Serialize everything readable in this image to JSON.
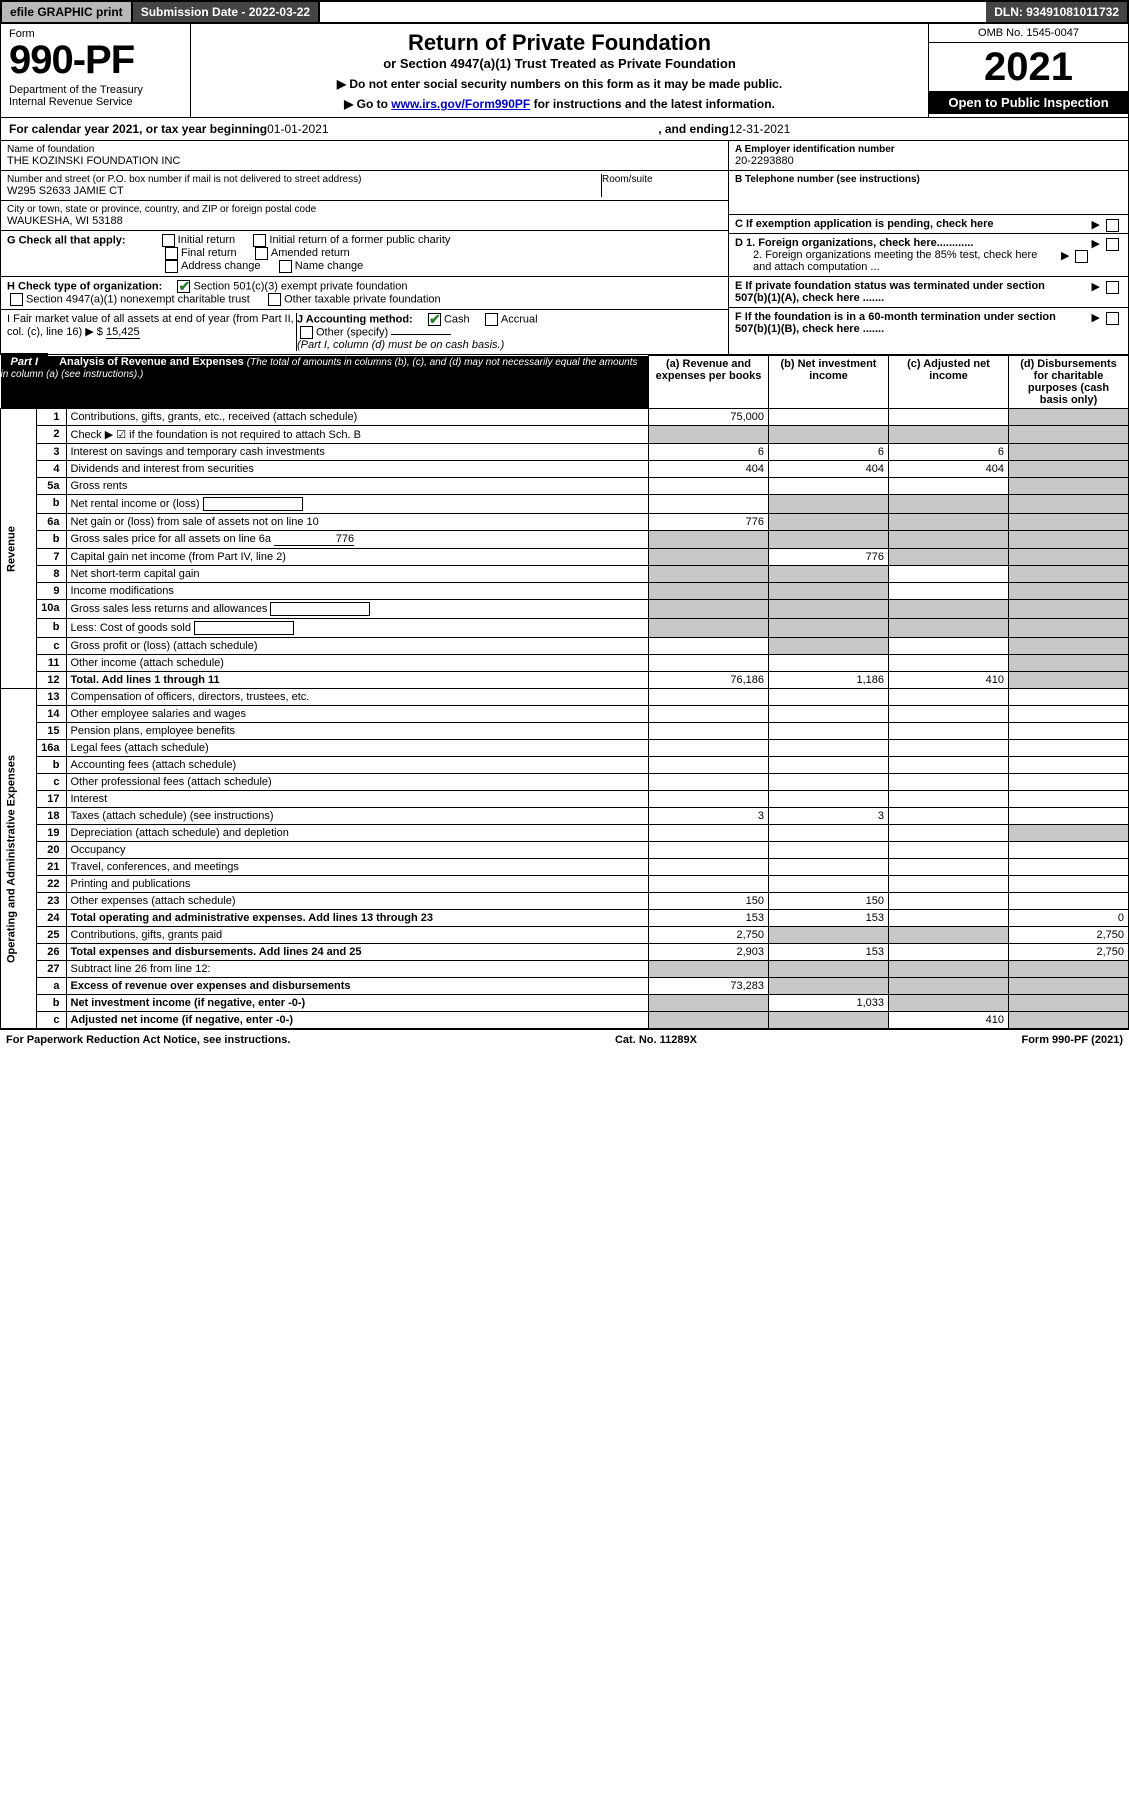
{
  "topbar": {
    "efile": "efile GRAPHIC print",
    "subdate_label": "Submission Date - ",
    "subdate": "2022-03-22",
    "dln_label": "DLN: ",
    "dln": "93491081011732"
  },
  "header": {
    "form_label": "Form",
    "form_no": "990-PF",
    "dept": "Department of the Treasury\nInternal Revenue Service",
    "title": "Return of Private Foundation",
    "subtitle": "or Section 4947(a)(1) Trust Treated as Private Foundation",
    "instr1": "▶ Do not enter social security numbers on this form as it may be made public.",
    "instr2_pre": "▶ Go to ",
    "instr2_link": "www.irs.gov/Form990PF",
    "instr2_post": " for instructions and the latest information.",
    "omb": "OMB No. 1545-0047",
    "year": "2021",
    "open": "Open to Public Inspection"
  },
  "cal": {
    "pre": "For calendar year 2021, or tax year beginning ",
    "begin": "01-01-2021",
    "mid": " , and ending ",
    "end": "12-31-2021"
  },
  "entity": {
    "name_label": "Name of foundation",
    "name": "THE KOZINSKI FOUNDATION INC",
    "addr_label": "Number and street (or P.O. box number if mail is not delivered to street address)",
    "addr": "W295 S2633 JAMIE CT",
    "room_label": "Room/suite",
    "room": "",
    "city_label": "City or town, state or province, country, and ZIP or foreign postal code",
    "city": "WAUKESHA, WI  53188",
    "ein_label": "A Employer identification number",
    "ein": "20-2293880",
    "phone_label": "B Telephone number (see instructions)",
    "phone": "",
    "c_label": "C If exemption application is pending, check here",
    "d1": "D 1. Foreign organizations, check here............",
    "d2": "2. Foreign organizations meeting the 85% test, check here and attach computation ...",
    "e": "E  If private foundation status was terminated under section 507(b)(1)(A), check here .......",
    "f": "F  If the foundation is in a 60-month termination under section 507(b)(1)(B), check here .......",
    "g_label": "G Check all that apply:",
    "g_opts": [
      "Initial return",
      "Initial return of a former public charity",
      "Final return",
      "Amended return",
      "Address change",
      "Name change"
    ],
    "h_label": "H Check type of organization:",
    "h_opts": [
      "Section 501(c)(3) exempt private foundation",
      "Section 4947(a)(1) nonexempt charitable trust",
      "Other taxable private foundation"
    ],
    "h_checked": 0,
    "i_label": "I Fair market value of all assets at end of year (from Part II, col. (c), line 16) ▶ $",
    "i_val": "15,425",
    "j_label": "J Accounting method:",
    "j_opts": [
      "Cash",
      "Accrual",
      "Other (specify)"
    ],
    "j_checked": 0,
    "j_note": "(Part I, column (d) must be on cash basis.)"
  },
  "part1": {
    "label": "Part I",
    "title": "Analysis of Revenue and Expenses",
    "title_note": "(The total of amounts in columns (b), (c), and (d) may not necessarily equal the amounts in column (a) (see instructions).)",
    "col_a": "(a)  Revenue and expenses per books",
    "col_b": "(b)  Net investment income",
    "col_c": "(c)  Adjusted net income",
    "col_d": "(d)  Disbursements for charitable purposes (cash basis only)"
  },
  "sections": {
    "revenue": "Revenue",
    "expenses": "Operating and Administrative Expenses"
  },
  "rows": [
    {
      "n": "1",
      "t": "Contributions, gifts, grants, etc., received (attach schedule)",
      "a": "75,000",
      "b": "",
      "c": "",
      "d": "",
      "d_grey": true
    },
    {
      "n": "2",
      "t": "Check ▶ ☑ if the foundation is not required to attach Sch. B",
      "a": "",
      "b": "",
      "c": "",
      "d": "",
      "all_grey": true,
      "bold_not": true
    },
    {
      "n": "3",
      "t": "Interest on savings and temporary cash investments",
      "a": "6",
      "b": "6",
      "c": "6",
      "d": "",
      "d_grey": true
    },
    {
      "n": "4",
      "t": "Dividends and interest from securities",
      "a": "404",
      "b": "404",
      "c": "404",
      "d": "",
      "d_grey": true
    },
    {
      "n": "5a",
      "t": "Gross rents",
      "a": "",
      "b": "",
      "c": "",
      "d": "",
      "d_grey": true
    },
    {
      "n": "b",
      "t": "Net rental income or (loss)",
      "a": "",
      "b": "",
      "c": "",
      "d": "",
      "bcd_grey": true,
      "inline_box": true
    },
    {
      "n": "6a",
      "t": "Net gain or (loss) from sale of assets not on line 10",
      "a": "776",
      "b": "",
      "c": "",
      "d": "",
      "bcd_grey": true
    },
    {
      "n": "b",
      "t": "Gross sales price for all assets on line 6a",
      "inline_val": "776",
      "a": "",
      "b": "",
      "c": "",
      "d": "",
      "all_grey": true
    },
    {
      "n": "7",
      "t": "Capital gain net income (from Part IV, line 2)",
      "a": "",
      "b": "776",
      "c": "",
      "d": "",
      "a_grey": true,
      "cd_grey": true
    },
    {
      "n": "8",
      "t": "Net short-term capital gain",
      "a": "",
      "b": "",
      "c": "",
      "d": "",
      "ab_grey": true,
      "d_grey": true
    },
    {
      "n": "9",
      "t": "Income modifications",
      "a": "",
      "b": "",
      "c": "",
      "d": "",
      "ab_grey": true,
      "d_grey": true
    },
    {
      "n": "10a",
      "t": "Gross sales less returns and allowances",
      "a": "",
      "b": "",
      "c": "",
      "d": "",
      "all_grey": true,
      "inline_box": true
    },
    {
      "n": "b",
      "t": "Less: Cost of goods sold",
      "a": "",
      "b": "",
      "c": "",
      "d": "",
      "all_grey": true,
      "inline_box": true
    },
    {
      "n": "c",
      "t": "Gross profit or (loss) (attach schedule)",
      "a": "",
      "b": "",
      "c": "",
      "d": "",
      "b_grey": true,
      "d_grey": true
    },
    {
      "n": "11",
      "t": "Other income (attach schedule)",
      "a": "",
      "b": "",
      "c": "",
      "d": "",
      "d_grey": true
    },
    {
      "n": "12",
      "t": "Total. Add lines 1 through 11",
      "a": "76,186",
      "b": "1,186",
      "c": "410",
      "d": "",
      "bold": true,
      "d_grey": true
    },
    {
      "n": "13",
      "t": "Compensation of officers, directors, trustees, etc.",
      "a": "",
      "b": "",
      "c": "",
      "d": ""
    },
    {
      "n": "14",
      "t": "Other employee salaries and wages",
      "a": "",
      "b": "",
      "c": "",
      "d": ""
    },
    {
      "n": "15",
      "t": "Pension plans, employee benefits",
      "a": "",
      "b": "",
      "c": "",
      "d": ""
    },
    {
      "n": "16a",
      "t": "Legal fees (attach schedule)",
      "a": "",
      "b": "",
      "c": "",
      "d": ""
    },
    {
      "n": "b",
      "t": "Accounting fees (attach schedule)",
      "a": "",
      "b": "",
      "c": "",
      "d": ""
    },
    {
      "n": "c",
      "t": "Other professional fees (attach schedule)",
      "a": "",
      "b": "",
      "c": "",
      "d": ""
    },
    {
      "n": "17",
      "t": "Interest",
      "a": "",
      "b": "",
      "c": "",
      "d": ""
    },
    {
      "n": "18",
      "t": "Taxes (attach schedule) (see instructions)",
      "a": "3",
      "b": "3",
      "c": "",
      "d": ""
    },
    {
      "n": "19",
      "t": "Depreciation (attach schedule) and depletion",
      "a": "",
      "b": "",
      "c": "",
      "d": "",
      "d_grey": true
    },
    {
      "n": "20",
      "t": "Occupancy",
      "a": "",
      "b": "",
      "c": "",
      "d": ""
    },
    {
      "n": "21",
      "t": "Travel, conferences, and meetings",
      "a": "",
      "b": "",
      "c": "",
      "d": ""
    },
    {
      "n": "22",
      "t": "Printing and publications",
      "a": "",
      "b": "",
      "c": "",
      "d": ""
    },
    {
      "n": "23",
      "t": "Other expenses (attach schedule)",
      "a": "150",
      "b": "150",
      "c": "",
      "d": ""
    },
    {
      "n": "24",
      "t": "Total operating and administrative expenses. Add lines 13 through 23",
      "a": "153",
      "b": "153",
      "c": "",
      "d": "0",
      "bold": true
    },
    {
      "n": "25",
      "t": "Contributions, gifts, grants paid",
      "a": "2,750",
      "b": "",
      "c": "",
      "d": "2,750",
      "bc_grey": true
    },
    {
      "n": "26",
      "t": "Total expenses and disbursements. Add lines 24 and 25",
      "a": "2,903",
      "b": "153",
      "c": "",
      "d": "2,750",
      "bold": true
    },
    {
      "n": "27",
      "t": "Subtract line 26 from line 12:",
      "a": "",
      "b": "",
      "c": "",
      "d": "",
      "all_grey": true
    },
    {
      "n": "a",
      "t": "Excess of revenue over expenses and disbursements",
      "a": "73,283",
      "b": "",
      "c": "",
      "d": "",
      "bold": true,
      "bcd_grey": true
    },
    {
      "n": "b",
      "t": "Net investment income (if negative, enter -0-)",
      "a": "",
      "b": "1,033",
      "c": "",
      "d": "",
      "bold": true,
      "a_grey": true,
      "cd_grey": true
    },
    {
      "n": "c",
      "t": "Adjusted net income (if negative, enter -0-)",
      "a": "",
      "b": "",
      "c": "410",
      "d": "",
      "bold": true,
      "ab_grey": true,
      "d_grey": true
    }
  ],
  "footer": {
    "left": "For Paperwork Reduction Act Notice, see instructions.",
    "mid": "Cat. No. 11289X",
    "right": "Form 990-PF (2021)"
  },
  "colors": {
    "topbar_grey": "#b8b8b8",
    "topbar_dark": "#444444",
    "shade": "#c8c8c8",
    "link": "#0000cc",
    "check_green": "#2e7d32"
  }
}
